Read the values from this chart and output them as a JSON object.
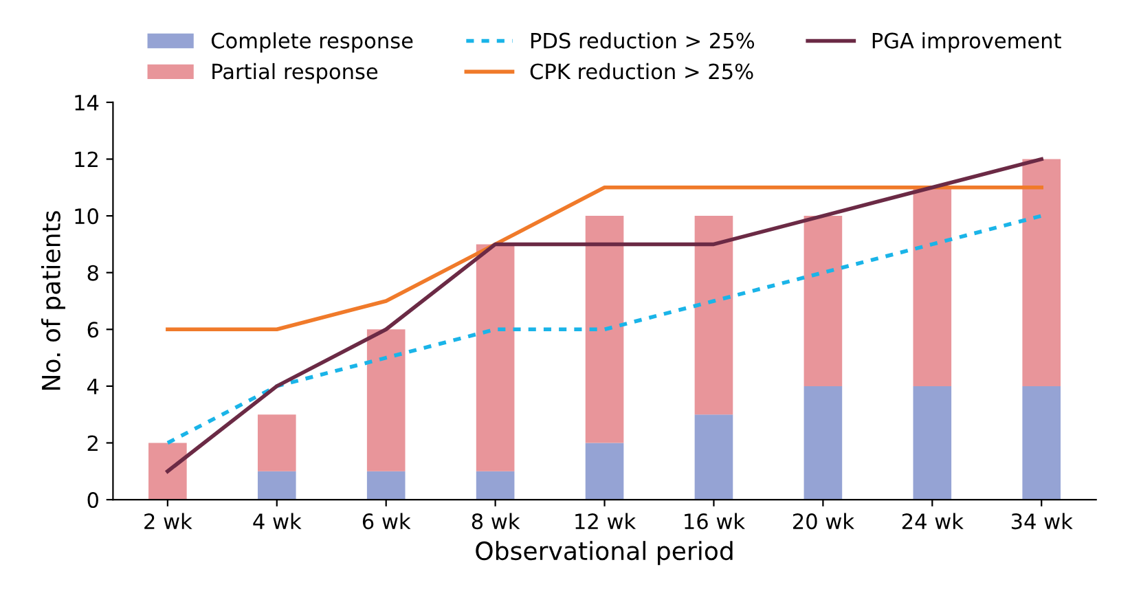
{
  "chart_data": {
    "type": "bar",
    "stacked": true,
    "xlabel": "Observational period",
    "ylabel": "No. of patients",
    "categories": [
      "2 wk",
      "4 wk",
      "6 wk",
      "8 wk",
      "12 wk",
      "16 wk",
      "20 wk",
      "24 wk",
      "34 wk"
    ],
    "series": [
      {
        "name": "Complete response",
        "color": "#95a3d4",
        "values": [
          0,
          1,
          1,
          1,
          2,
          3,
          4,
          4,
          4
        ]
      },
      {
        "name": "Partial response",
        "color": "#e8959a",
        "values": [
          2,
          2,
          5,
          8,
          8,
          7,
          6,
          7,
          8
        ]
      },
      {
        "name": "PDS reduction > 25%",
        "type": "line",
        "line_style": "dashed",
        "color": "#1ab4e8",
        "values": [
          2,
          4,
          5,
          6,
          6,
          7,
          8,
          9,
          10
        ]
      },
      {
        "name": "CPK reduction > 25%",
        "type": "line",
        "line_style": "solid",
        "color": "#f07a2a",
        "values": [
          6,
          6,
          7,
          9,
          11,
          11,
          11,
          11,
          11
        ]
      },
      {
        "name": "PGA improvement",
        "type": "line",
        "line_style": "solid",
        "color": "#6b2a45",
        "values": [
          1,
          4,
          6,
          9,
          9,
          9,
          10,
          11,
          12
        ]
      }
    ],
    "ylim": [
      0,
      14
    ],
    "yticks": [
      0,
      2,
      4,
      6,
      8,
      10,
      12,
      14
    ],
    "grid": false,
    "legend": "top",
    "marker": "none"
  }
}
